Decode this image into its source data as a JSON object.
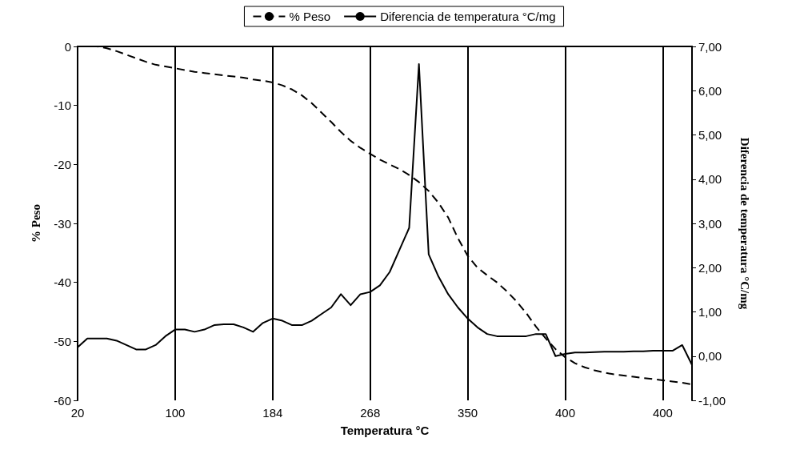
{
  "chart_data": {
    "type": "line",
    "xlabel": "Temperatura °C",
    "ylabel": "% Peso",
    "y2label": "Diferencia de temperatura °C/mg",
    "categories": [
      "20",
      null,
      null,
      null,
      null,
      null,
      null,
      null,
      null,
      null,
      "100",
      null,
      null,
      null,
      null,
      null,
      null,
      null,
      null,
      null,
      "184",
      null,
      null,
      null,
      null,
      null,
      null,
      null,
      null,
      null,
      "268",
      null,
      null,
      null,
      null,
      null,
      null,
      null,
      null,
      null,
      "350",
      null,
      null,
      null,
      null,
      null,
      null,
      null,
      null,
      null,
      "400",
      null,
      null,
      null,
      null,
      null,
      null,
      null,
      null,
      null,
      "400",
      null,
      null,
      null
    ],
    "ylim": [
      -60,
      0
    ],
    "yticks": [
      -60,
      -50,
      -40,
      -30,
      -20,
      -10,
      0
    ],
    "y2lim": [
      -1,
      7
    ],
    "y2ticks": [
      {
        "value": -1,
        "label": "-1,00"
      },
      {
        "value": 0,
        "label": "0,00"
      },
      {
        "value": 1,
        "label": "1,00"
      },
      {
        "value": 2,
        "label": "2,00"
      },
      {
        "value": 3,
        "label": "3,00"
      },
      {
        "value": 4,
        "label": "4,00"
      },
      {
        "value": 5,
        "label": "5,00"
      },
      {
        "value": 6,
        "label": "6,00"
      },
      {
        "value": 7,
        "label": "7,00"
      }
    ],
    "grid": "x",
    "legend": "top",
    "marker": "none",
    "series": [
      {
        "name": "% Peso",
        "color": "#000000",
        "line_style": "dashed",
        "values": [
          0,
          0,
          0,
          -0.3,
          -0.8,
          -1.4,
          -2,
          -2.6,
          -3.1,
          -3.4,
          -3.7,
          -4,
          -4.3,
          -4.5,
          -4.7,
          -4.9,
          -5.1,
          -5.3,
          -5.6,
          -5.8,
          -6.1,
          -6.6,
          -7.3,
          -8.3,
          -9.6,
          -11.2,
          -12.8,
          -14.5,
          -16,
          -17.2,
          -18.2,
          -19.2,
          -20,
          -20.8,
          -21.8,
          -23,
          -24.5,
          -26.5,
          -29,
          -32.5,
          -35.5,
          -37.5,
          -38.8,
          -40,
          -41.5,
          -43.2,
          -45.2,
          -47.5,
          -49.5,
          -51.3,
          -52.7,
          -53.7,
          -54.4,
          -54.9,
          -55.3,
          -55.6,
          -55.8,
          -56,
          -56.2,
          -56.4,
          -56.6,
          -56.8,
          -57,
          -57.3
        ]
      },
      {
        "name": "Diferencia de temperatura °C/mg",
        "color": "#000000",
        "line_style": "solid",
        "axis": "y2",
        "values": [
          0.2,
          0.4,
          0.4,
          0.4,
          0.35,
          0.25,
          0.15,
          0.15,
          0.25,
          0.45,
          0.6,
          0.6,
          0.55,
          0.6,
          0.7,
          0.72,
          0.72,
          0.65,
          0.55,
          0.75,
          0.85,
          0.8,
          0.7,
          0.7,
          0.8,
          0.95,
          1.1,
          1.4,
          1.15,
          1.4,
          1.45,
          1.6,
          1.9,
          2.4,
          2.9,
          6.6,
          2.3,
          1.8,
          1.4,
          1.1,
          0.85,
          0.65,
          0.5,
          0.45,
          0.45,
          0.45,
          0.45,
          0.5,
          0.5,
          0,
          0.05,
          0.08,
          0.08,
          0.09,
          0.1,
          0.1,
          0.1,
          0.11,
          0.11,
          0.12,
          0.12,
          0.12,
          0.25,
          -0.2
        ]
      }
    ]
  }
}
